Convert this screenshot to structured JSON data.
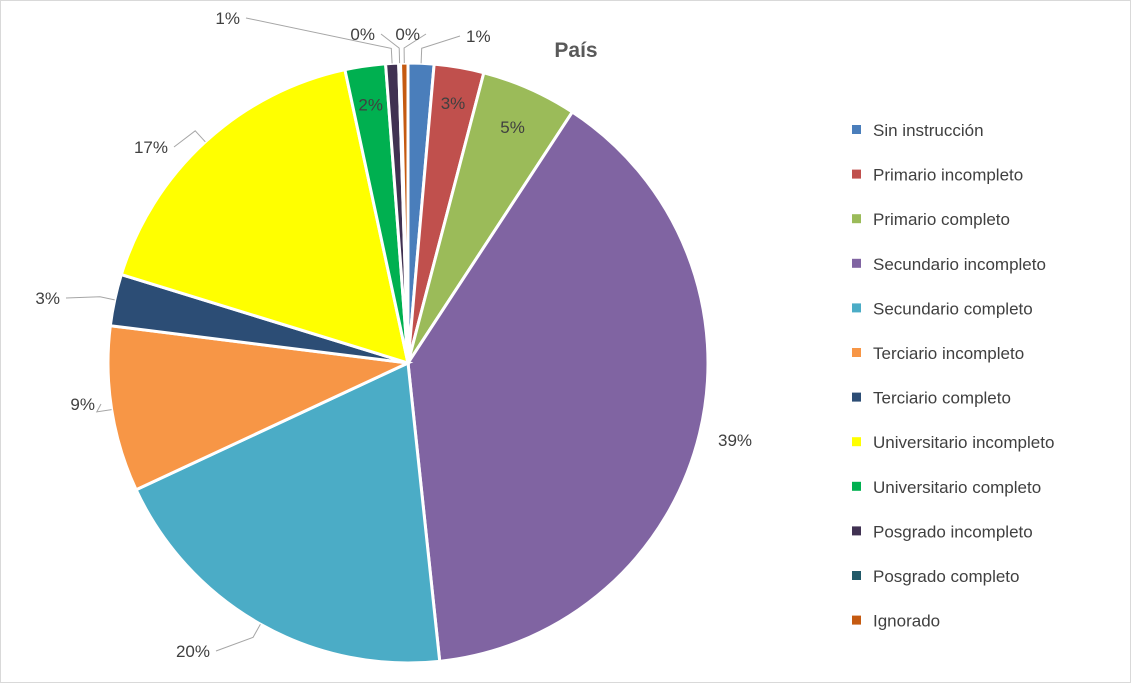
{
  "chart_data": {
    "type": "pie",
    "title": "País",
    "legend_position": "right",
    "categories": [
      "Sin instrucción",
      "Primario incompleto",
      "Primario completo",
      "Secundario incompleto",
      "Secundario completo",
      "Terciario incompleto",
      "Terciario completo",
      "Universitario incompleto",
      "Universitario completo",
      "Posgrado incompleto",
      "Posgrado completo",
      "Ignorado"
    ],
    "values": [
      1.4,
      2.7,
      5.2,
      39.4,
      19.9,
      9.0,
      2.8,
      17.0,
      2.2,
      0.7,
      0.1,
      0.4
    ],
    "labels": [
      "1%",
      "3%",
      "5%",
      "39%",
      "20%",
      "9%",
      "3%",
      "17%",
      "2%",
      "1%",
      "0%",
      "0%"
    ],
    "colors": [
      "#4a7ebb",
      "#c0504d",
      "#9bbb59",
      "#8064a2",
      "#4bacc6",
      "#f79646",
      "#2c4d75",
      "#ffff00",
      "#00b050",
      "#403152",
      "#215968",
      "#c55a11"
    ]
  }
}
